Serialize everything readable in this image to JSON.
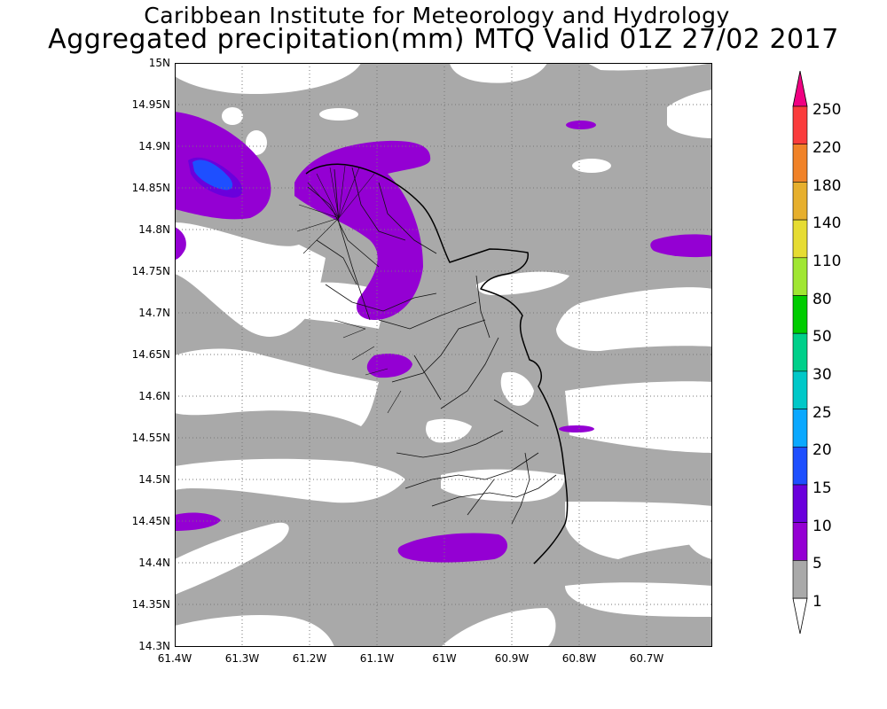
{
  "title": {
    "line1": "Caribbean Institute for Meteorology and Hydrology",
    "line2": "Aggregated precipitation(mm) MTQ Valid 01Z 27/02 2017"
  },
  "map": {
    "region": "Martinique",
    "lat_range": [
      14.3,
      15.0
    ],
    "lon_range": [
      -61.4,
      -60.6
    ],
    "grid": true,
    "lat_ticks": [
      "15N",
      "14.95N",
      "14.9N",
      "14.85N",
      "14.8N",
      "14.75N",
      "14.7N",
      "14.65N",
      "14.6N",
      "14.55N",
      "14.5N",
      "14.45N",
      "14.4N",
      "14.35N",
      "14.3N"
    ],
    "lon_ticks": [
      "61.4W",
      "61.3W",
      "61.2W",
      "61.1W",
      "61W",
      "60.9W",
      "60.8W",
      "60.7W"
    ]
  },
  "legend": {
    "levels": [
      "1",
      "5",
      "10",
      "15",
      "20",
      "25",
      "30",
      "50",
      "80",
      "110",
      "140",
      "180",
      "220",
      "250"
    ],
    "colors": [
      "#ffffff",
      "#a9a9a9",
      "#9400d3",
      "#6a00dc",
      "#1e4fff",
      "#0aa8ff",
      "#00c8c8",
      "#00d08a",
      "#00cc00",
      "#a0e632",
      "#e6dc32",
      "#e6af2d",
      "#f08228",
      "#fa3c3c",
      "#f00082"
    ]
  }
}
